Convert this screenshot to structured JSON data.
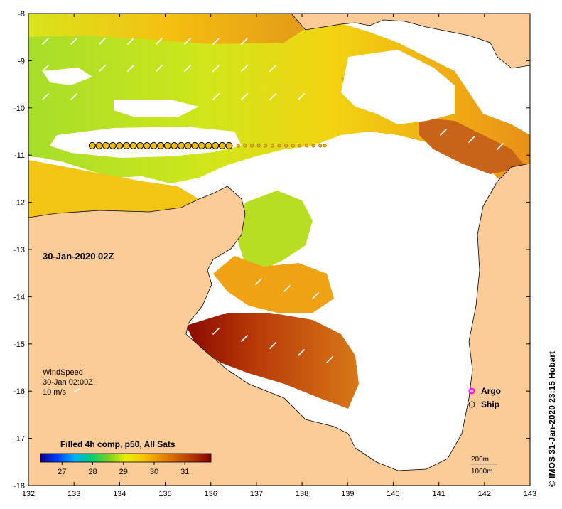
{
  "map": {
    "timestamp": "30-Jan-2020 02Z",
    "credit": "© IMOS 31-Jan-2020 23:15 Hobart",
    "lon_range": [
      132,
      143
    ],
    "lat_range": [
      -18,
      -8
    ],
    "x_ticks": [
      "132",
      "133",
      "134",
      "135",
      "136",
      "137",
      "138",
      "139",
      "140",
      "141",
      "142",
      "143"
    ],
    "y_ticks": [
      "-8",
      "-9",
      "-10",
      "-11",
      "-12",
      "-13",
      "-14",
      "-15",
      "-16",
      "-17",
      "-18"
    ]
  },
  "wind": {
    "title": "WindSpeed",
    "time": "30-Jan 02:00Z",
    "scale_label": "10 m/s"
  },
  "legend": {
    "argo_label": "Argo",
    "ship_label": "Ship"
  },
  "depth": {
    "contour_200": "200m",
    "contour_1000": "1000m"
  },
  "colorbar": {
    "title": "Filled 4h comp, p50, All Sats",
    "range": [
      26.3,
      31.85
    ],
    "ticks": [
      "27",
      "28",
      "29",
      "30",
      "31"
    ]
  },
  "ship_track": {
    "lat": -10.8,
    "large_lons": [
      133.4,
      133.55,
      133.7,
      133.85,
      134.0,
      134.15,
      134.3,
      134.45,
      134.6,
      134.75,
      134.9,
      135.05,
      135.2,
      135.35,
      135.5,
      135.65,
      135.8,
      135.95,
      136.1,
      136.25,
      136.4
    ],
    "small_lons": [
      136.6,
      136.75,
      136.9,
      137.05,
      137.2,
      137.35,
      137.5,
      137.65,
      137.8,
      137.95,
      138.1,
      138.25,
      138.4,
      138.5
    ]
  },
  "colors": {
    "land": "#FBCB98",
    "gap": "#FFFFFF",
    "sst_scale": [
      "#0b0090",
      "#0040ff",
      "#00b0ff",
      "#00d070",
      "#7ad020",
      "#e8f000",
      "#f8c800",
      "#e89000",
      "#d06000",
      "#b03000",
      "#800000"
    ],
    "argo": "#ff00ff",
    "wind_arrow": "#ffffff"
  }
}
